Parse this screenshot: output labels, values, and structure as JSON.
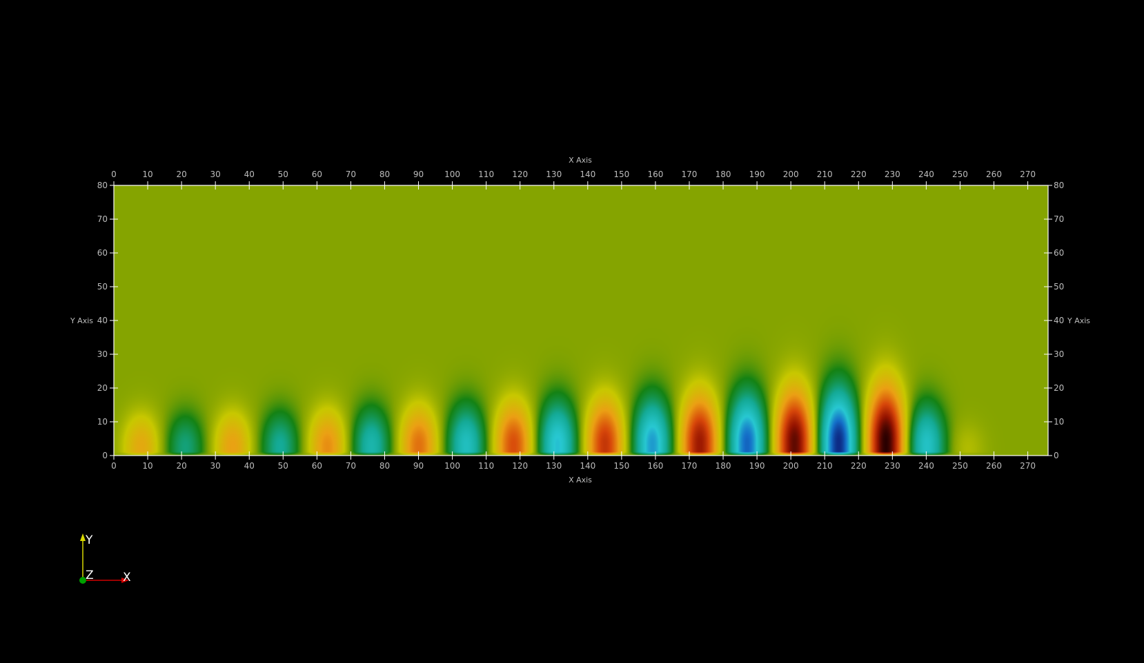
{
  "axes": {
    "x_title": "X Axis",
    "y_title": "Y Axis",
    "x_ticks": [
      "0",
      "10",
      "20",
      "30",
      "40",
      "50",
      "60",
      "70",
      "80",
      "90",
      "100",
      "110",
      "120",
      "130",
      "140",
      "150",
      "160",
      "170",
      "180",
      "190",
      "200",
      "210",
      "220",
      "230",
      "240",
      "250",
      "260",
      "270"
    ],
    "y_ticks": [
      "0",
      "10",
      "20",
      "30",
      "40",
      "50",
      "60",
      "70",
      "80"
    ],
    "x_range": [
      0,
      276
    ],
    "y_range": [
      0,
      80
    ]
  },
  "field": {
    "colormap": "jet-like: green background, yellow/orange/red positive, teal/cyan/blue negative",
    "background_color": "#85a400",
    "lobes": [
      {
        "x": 8,
        "sign": 1,
        "amp": 0.3
      },
      {
        "x": 21,
        "sign": -1,
        "amp": 0.3
      },
      {
        "x": 35,
        "sign": 1,
        "amp": 0.34
      },
      {
        "x": 49,
        "sign": -1,
        "amp": 0.36
      },
      {
        "x": 63,
        "sign": 1,
        "amp": 0.4
      },
      {
        "x": 76,
        "sign": -1,
        "amp": 0.44
      },
      {
        "x": 90,
        "sign": 1,
        "amp": 0.48
      },
      {
        "x": 104,
        "sign": -1,
        "amp": 0.52
      },
      {
        "x": 118,
        "sign": 1,
        "amp": 0.58
      },
      {
        "x": 131,
        "sign": -1,
        "amp": 0.62
      },
      {
        "x": 145,
        "sign": 1,
        "amp": 0.66
      },
      {
        "x": 159,
        "sign": -1,
        "amp": 0.7
      },
      {
        "x": 173,
        "sign": 1,
        "amp": 0.78
      },
      {
        "x": 187,
        "sign": -1,
        "amp": 0.82
      },
      {
        "x": 201,
        "sign": 1,
        "amp": 0.9
      },
      {
        "x": 214,
        "sign": -1,
        "amp": 0.95
      },
      {
        "x": 228,
        "sign": 1,
        "amp": 1.0
      },
      {
        "x": 240,
        "sign": -1,
        "amp": 0.55
      },
      {
        "x": 252,
        "sign": 1,
        "amp": 0.08
      }
    ]
  },
  "orientation": {
    "x_label": "X",
    "y_label": "Y",
    "z_label": "Z",
    "x_color": "#d00000",
    "y_color": "#d8d800",
    "z_color": "#00a000"
  }
}
